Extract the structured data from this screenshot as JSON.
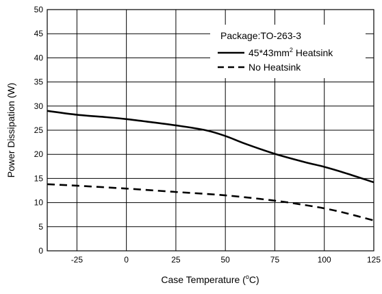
{
  "chart_data": {
    "type": "line",
    "xlabel": "Case Temperature (",
    "xlabel_sup": "o",
    "xlabel_tail": "C)",
    "ylabel": "Power Dissipation (W)",
    "xlim": [
      -40,
      125
    ],
    "ylim": [
      0,
      50
    ],
    "x_ticks": [
      -25,
      0,
      25,
      50,
      75,
      100,
      125
    ],
    "x_tick_labels": [
      "-25",
      "0",
      "25",
      "50",
      "75",
      "100",
      "125"
    ],
    "y_ticks": [
      0,
      5,
      10,
      15,
      20,
      25,
      30,
      35,
      40,
      45,
      50
    ],
    "y_tick_labels": [
      "0",
      "5",
      "10",
      "15",
      "20",
      "25",
      "30",
      "35",
      "40",
      "45",
      "50"
    ],
    "grid": true,
    "legend": {
      "placement": "top-right",
      "title": "Package:TO-263-3",
      "entries": [
        {
          "name": "45*43mm",
          "sup": "2",
          "tail": " Heatsink",
          "style": "solid"
        },
        {
          "name": "No Heatsink",
          "sup": "",
          "tail": "",
          "style": "dashed"
        }
      ]
    },
    "series": [
      {
        "name": "45*43mm² Heatsink",
        "style": "solid",
        "x": [
          -40,
          -25,
          -10,
          0,
          10,
          25,
          40,
          50,
          60,
          75,
          90,
          100,
          110,
          125
        ],
        "y": [
          29.0,
          28.2,
          27.7,
          27.3,
          26.8,
          26.0,
          25.0,
          23.8,
          22.2,
          20.1,
          18.4,
          17.4,
          16.2,
          14.2
        ]
      },
      {
        "name": "No Heatsink",
        "style": "dashed",
        "x": [
          -40,
          -25,
          0,
          25,
          50,
          75,
          90,
          100,
          110,
          125
        ],
        "y": [
          13.8,
          13.5,
          12.9,
          12.2,
          11.5,
          10.4,
          9.5,
          8.8,
          7.9,
          6.3
        ]
      }
    ]
  },
  "colors": {
    "line": "#000000",
    "background": "#ffffff"
  }
}
